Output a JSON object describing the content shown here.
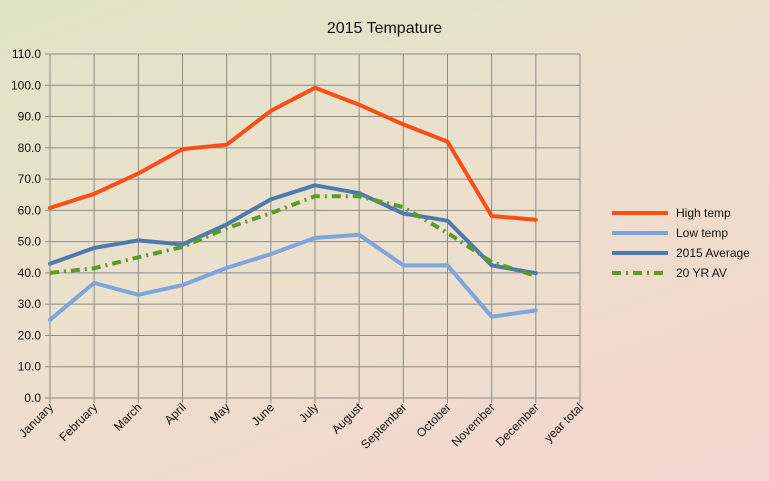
{
  "chart_data": {
    "type": "line",
    "title": "2015 Tempature",
    "xlabel": "",
    "ylabel": "",
    "categories": [
      "January",
      "February",
      "March",
      "April",
      "May",
      "June",
      "July",
      "August",
      "September",
      "October",
      "November",
      "December",
      "year total"
    ],
    "ylim": [
      0,
      110
    ],
    "yticks": [
      "0.0",
      "10.0",
      "20.0",
      "30.0",
      "40.0",
      "50.0",
      "60.0",
      "70.0",
      "80.0",
      "90.0",
      "100.0",
      "110.0"
    ],
    "grid": true,
    "legend": "right",
    "series": [
      {
        "name": "High temp",
        "color": "#fc4e16",
        "dash": "solid",
        "values": [
          60.8,
          65.3,
          71.8,
          79.6,
          81.0,
          91.8,
          99.2,
          93.8,
          87.5,
          82.0,
          58.2,
          57.0,
          null
        ]
      },
      {
        "name": "Low temp",
        "color": "#7ea5dc",
        "dash": "solid",
        "values": [
          25.0,
          36.8,
          33.0,
          36.1,
          41.6,
          46.0,
          51.2,
          52.2,
          42.4,
          42.4,
          26.0,
          28.0,
          null
        ]
      },
      {
        "name": "2015 Average",
        "color": "#4f7ab0",
        "dash": "solid",
        "values": [
          42.9,
          48.0,
          50.4,
          49.1,
          55.5,
          63.5,
          68.0,
          65.5,
          59.0,
          56.7,
          42.4,
          39.9,
          null
        ]
      },
      {
        "name": "20 YR AV",
        "color": "#5e9a26",
        "dash": "dashdot",
        "values": [
          40.0,
          41.5,
          45.0,
          48.3,
          54.3,
          59.1,
          64.5,
          64.5,
          61.0,
          52.8,
          43.5,
          39.0,
          null
        ]
      }
    ]
  }
}
